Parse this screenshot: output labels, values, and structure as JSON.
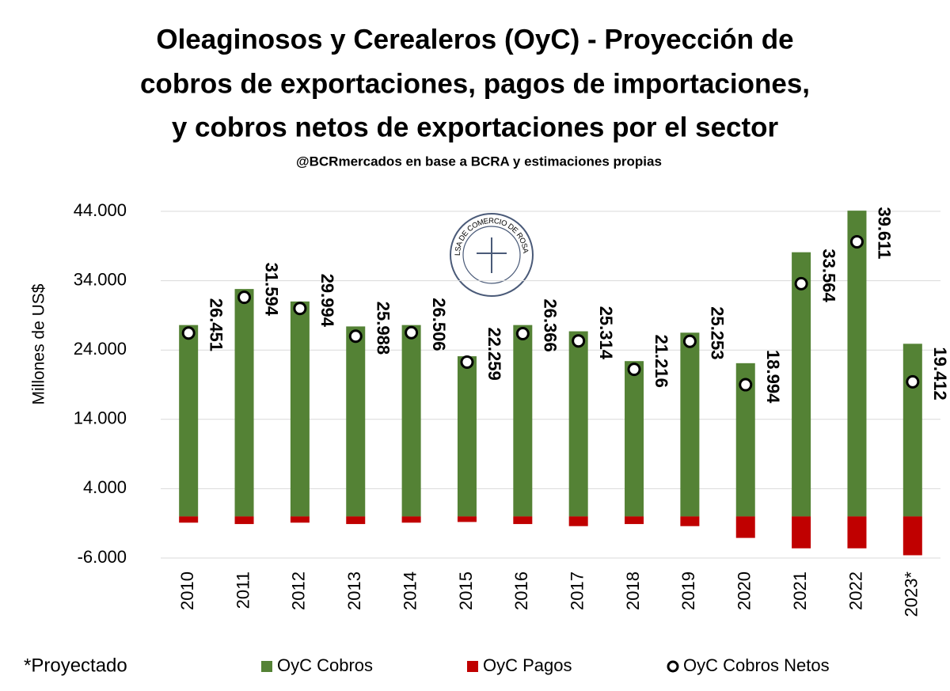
{
  "chart_data": {
    "type": "bar",
    "title": [
      "Oleaginosos y Cerealeros (OyC) - Proyección de",
      "cobros de exportaciones, pagos de importaciones,",
      "y cobros netos de exportaciones por el sector"
    ],
    "subtitle": "@BCRmercados en base a BCRA y estimaciones propias",
    "logo_text": "BOLSA DE COMERCIO DE ROSARIO",
    "y_label": "Millones de US$",
    "annotation": "*Proyectado",
    "categories": [
      "2010",
      "2011",
      "2012",
      "2013",
      "2014",
      "2015",
      "2016",
      "2017",
      "2018",
      "2019",
      "2020",
      "2021",
      "2022",
      "2023*"
    ],
    "series": [
      {
        "name": "OyC Cobros",
        "color": "#548235",
        "kind": "bar",
        "values": [
          27600,
          32800,
          31000,
          27400,
          27600,
          23100,
          27600,
          26700,
          22400,
          26500,
          22100,
          38100,
          44100,
          24900
        ]
      },
      {
        "name": "OyC Pagos",
        "color": "#c00000",
        "kind": "bar",
        "values": [
          -900,
          -1100,
          -900,
          -1100,
          -900,
          -800,
          -1100,
          -1400,
          -1100,
          -1400,
          -3100,
          -4600,
          -4600,
          -5600
        ]
      },
      {
        "name": "OyC Cobros Netos",
        "color": "#ffffff",
        "kind": "point",
        "values": [
          26451,
          31594,
          29994,
          25988,
          26506,
          22259,
          26366,
          25314,
          21216,
          25253,
          18994,
          33564,
          39611,
          19412
        ],
        "value_labels": [
          "26.451",
          "31.594",
          "29.994",
          "25.988",
          "26.506",
          "22.259",
          "26.366",
          "25.314",
          "21.216",
          "25.253",
          "18.994",
          "33.564",
          "39.611",
          "19.412"
        ]
      }
    ],
    "ylim": [
      -6000,
      44000
    ],
    "yticks": [
      {
        "value": -6000,
        "label": "-6.000"
      },
      {
        "value": 4000,
        "label": "4.000"
      },
      {
        "value": 14000,
        "label": "14.000"
      },
      {
        "value": 24000,
        "label": "24.000"
      },
      {
        "value": 34000,
        "label": "34.000"
      },
      {
        "value": 44000,
        "label": "44.000"
      }
    ],
    "grid": true,
    "legend": "bottom"
  }
}
